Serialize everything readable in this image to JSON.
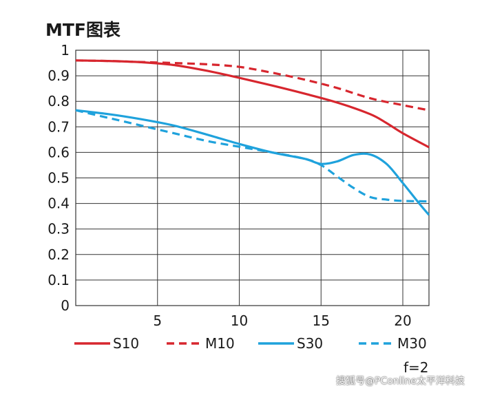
{
  "chart_data": {
    "type": "line",
    "title": "MTF图表",
    "xlabel": "",
    "ylabel": "",
    "xlim": [
      0,
      21.6
    ],
    "ylim": [
      0,
      1
    ],
    "x_ticks": [
      5,
      10,
      15,
      20
    ],
    "y_ticks": [
      0,
      0.1,
      0.2,
      0.3,
      0.4,
      0.5,
      0.6,
      0.7,
      0.8,
      0.9,
      1
    ],
    "y_tick_labels": [
      "0",
      "0.1",
      "0.2",
      "0.3",
      "0.4",
      "0.5",
      "0.6",
      "0.7",
      "0.8",
      "0.9",
      "1"
    ],
    "grid": true,
    "legend_position": "bottom",
    "series": [
      {
        "name": "S10",
        "color": "#d7262e",
        "dash": false,
        "x": [
          0,
          2,
          4,
          6,
          8,
          10,
          12,
          14,
          16,
          18,
          19,
          20,
          21.6
        ],
        "y": [
          0.96,
          0.958,
          0.953,
          0.942,
          0.92,
          0.892,
          0.862,
          0.83,
          0.795,
          0.75,
          0.715,
          0.675,
          0.62
        ]
      },
      {
        "name": "M10",
        "color": "#d7262e",
        "dash": true,
        "x": [
          0,
          2,
          4,
          6,
          8,
          10,
          12,
          14,
          16,
          18,
          20,
          21.6
        ],
        "y": [
          0.96,
          0.958,
          0.954,
          0.95,
          0.945,
          0.935,
          0.912,
          0.885,
          0.852,
          0.812,
          0.785,
          0.765
        ]
      },
      {
        "name": "S30",
        "color": "#1fa2dc",
        "dash": false,
        "x": [
          0,
          2,
          4,
          6,
          8,
          10,
          12,
          14,
          15,
          16,
          17,
          18,
          19,
          20,
          21,
          21.6
        ],
        "y": [
          0.765,
          0.75,
          0.73,
          0.705,
          0.67,
          0.633,
          0.6,
          0.575,
          0.555,
          0.565,
          0.59,
          0.592,
          0.555,
          0.48,
          0.4,
          0.355
        ]
      },
      {
        "name": "M30",
        "color": "#1fa2dc",
        "dash": true,
        "x": [
          0,
          2,
          4,
          6,
          8,
          10,
          12,
          14,
          15,
          16,
          17,
          18,
          19,
          20,
          21.6
        ],
        "y": [
          0.765,
          0.735,
          0.705,
          0.675,
          0.645,
          0.622,
          0.6,
          0.575,
          0.55,
          0.505,
          0.46,
          0.425,
          0.415,
          0.41,
          0.408
        ]
      }
    ],
    "annotation": "f=2"
  },
  "watermark": "搜狐号@PConline太平洋科技"
}
